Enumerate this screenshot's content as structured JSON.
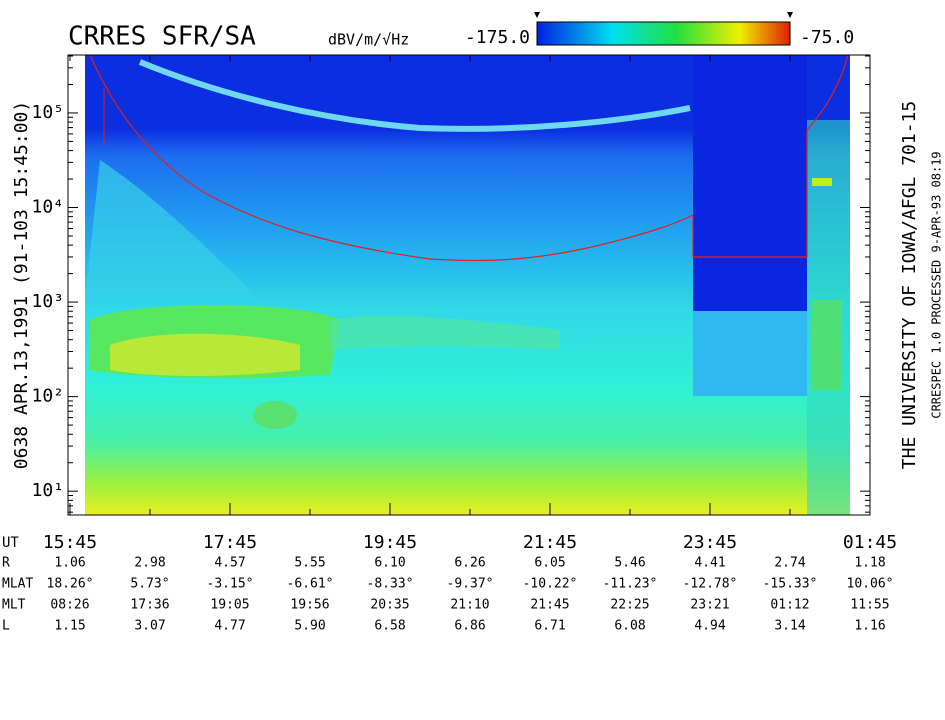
{
  "chart_data": {
    "type": "spectrogram",
    "title": "CRRES SFR/SA",
    "colorbar_label": "dBV/m/√Hz",
    "zlim": [
      -175,
      -75
    ],
    "zticks": [
      {
        "value": -175,
        "label": "-175.0"
      },
      {
        "value": -75,
        "label": "-75.0"
      }
    ],
    "ylog": true,
    "ylim": [
      5.6,
      410000
    ],
    "yticks": [
      {
        "value": 10,
        "label": "10¹"
      },
      {
        "value": 100,
        "label": "10²"
      },
      {
        "value": 1000,
        "label": "10³"
      },
      {
        "value": 10000,
        "label": "10⁴"
      },
      {
        "value": 100000,
        "label": "10⁵"
      }
    ],
    "x": [
      "15:45",
      null,
      "17:45",
      null,
      "19:45",
      null,
      "21:45",
      null,
      "23:45",
      null,
      "01:45"
    ],
    "left_label": "0638  APR.13,1991  (91-103 15:45:00)",
    "right_label": "THE UNIVERSITY OF IOWA/AFGL 701-15",
    "right_sublabel": "CRRESPEC 1.0  PROCESSED  9-APR-93  08:19",
    "ephemeris": {
      "row_labels": [
        "UT",
        "R",
        "MLAT",
        "MLT",
        "L"
      ],
      "rows": [
        [
          "1.06",
          "2.98",
          "4.57",
          "5.55",
          "6.10",
          "6.26",
          "6.05",
          "5.46",
          "4.41",
          "2.74",
          "1.18"
        ],
        [
          "18.26°",
          "5.73°",
          "-3.15°",
          "-6.61°",
          "-8.33°",
          "-9.37°",
          "-10.22°",
          "-11.23°",
          "-12.78°",
          "-15.33°",
          "10.06°"
        ],
        [
          "08:26",
          "17:36",
          "19:05",
          "19:56",
          "20:35",
          "21:10",
          "21:45",
          "22:25",
          "23:21",
          "01:12",
          "11:55"
        ],
        [
          "1.15",
          "3.07",
          "4.77",
          "5.90",
          "6.58",
          "6.86",
          "6.71",
          "6.08",
          "4.94",
          "3.14",
          "1.16"
        ]
      ]
    }
  }
}
